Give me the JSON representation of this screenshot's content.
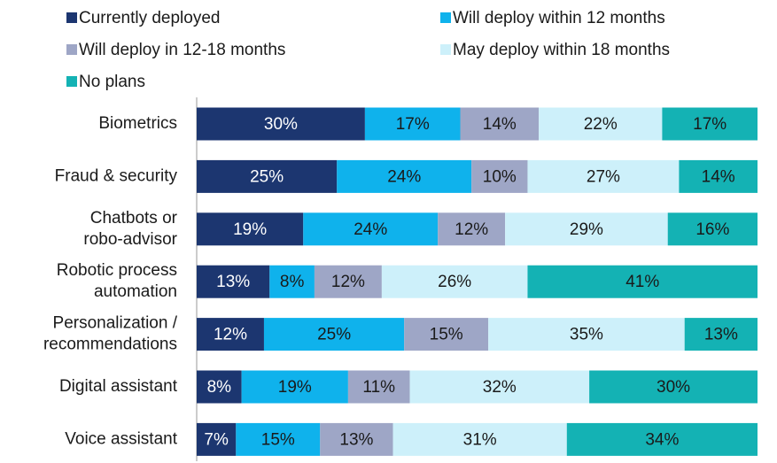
{
  "chart_data": {
    "type": "stacked_barh",
    "categories": [
      "Biometrics",
      "Fraud & security",
      "Chatbots or\nrobo-advisor",
      "Robotic process\nautomation",
      "Personalization /\nrecommendations",
      "Digital assistant",
      "Voice assistant"
    ],
    "xlim": [
      0,
      100
    ],
    "series": [
      {
        "name": "Currently deployed",
        "color": "#1c3670",
        "label_color": "#ffffff",
        "values": [
          30,
          25,
          19,
          13,
          12,
          8,
          7
        ],
        "value_labels": [
          "30%",
          "25%",
          "19%",
          "13%",
          "12%",
          "8%",
          "7%"
        ]
      },
      {
        "name": "Will deploy within 12 months",
        "color": "#0fb2ec",
        "label_color": "#1a1a1a",
        "values": [
          17,
          24,
          24,
          8,
          25,
          19,
          15
        ],
        "value_labels": [
          "17%",
          "24%",
          "24%",
          "8%",
          "25%",
          "19%",
          "15%"
        ]
      },
      {
        "name": "Will deploy in 12-18 months",
        "color": "#9ea6c6",
        "label_color": "#1a1a1a",
        "values": [
          14,
          10,
          12,
          12,
          15,
          11,
          13
        ],
        "value_labels": [
          "14%",
          "10%",
          "12%",
          "12%",
          "15%",
          "11%",
          "13%"
        ]
      },
      {
        "name": "May deploy within 18 months",
        "color": "#cdf0fa",
        "label_color": "#1a1a1a",
        "values": [
          22,
          27,
          29,
          26,
          35,
          32,
          31
        ],
        "value_labels": [
          "22%",
          "27%",
          "29%",
          "26%",
          "35%",
          "32%",
          "31%"
        ]
      },
      {
        "name": "No plans",
        "color": "#14b2b4",
        "label_color": "#1a1a1a",
        "values": [
          17,
          14,
          16,
          41,
          13,
          30,
          34
        ],
        "value_labels": [
          "17%",
          "14%",
          "16%",
          "41%",
          "13%",
          "30%",
          "34%"
        ]
      }
    ]
  }
}
